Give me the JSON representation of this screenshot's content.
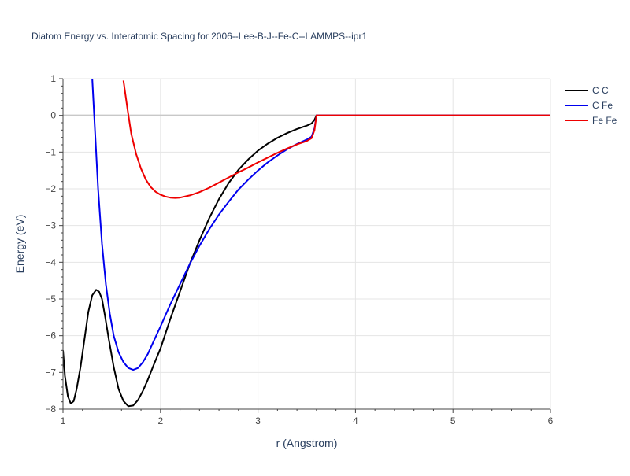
{
  "chart_data": {
    "type": "line",
    "title": "Diatom Energy vs. Interatomic Spacing for 2006--Lee-B-J--Fe-C--LAMMPS--ipr1",
    "xlabel": "r (Angstrom)",
    "ylabel": "Energy (eV)",
    "xlim": [
      1,
      6
    ],
    "ylim": [
      -8,
      1
    ],
    "x_ticks": [
      1,
      2,
      3,
      4,
      5,
      6
    ],
    "y_ticks": [
      1,
      0,
      -1,
      -2,
      -3,
      -4,
      -5,
      -6,
      -7,
      -8
    ],
    "x_tick_labels": [
      "1",
      "2",
      "3",
      "4",
      "5",
      "6"
    ],
    "y_tick_labels": [
      "1",
      "0",
      "−1",
      "−2",
      "−3",
      "−4",
      "−5",
      "−6",
      "−7",
      "−8"
    ],
    "grid": true,
    "legend_position": "top-right",
    "series": [
      {
        "name": "C C",
        "color": "#000000",
        "x": [
          1.0,
          1.02,
          1.05,
          1.08,
          1.11,
          1.14,
          1.18,
          1.22,
          1.26,
          1.3,
          1.34,
          1.37,
          1.4,
          1.43,
          1.47,
          1.52,
          1.57,
          1.62,
          1.67,
          1.72,
          1.77,
          1.82,
          1.87,
          1.93,
          2.0,
          2.1,
          2.2,
          2.3,
          2.4,
          2.5,
          2.6,
          2.7,
          2.8,
          2.9,
          3.0,
          3.1,
          3.2,
          3.3,
          3.4,
          3.5,
          3.55,
          3.58,
          3.6,
          3.62,
          4.0,
          4.5,
          5.0,
          5.5,
          6.0
        ],
        "y": [
          -6.4,
          -7.1,
          -7.65,
          -7.85,
          -7.78,
          -7.45,
          -6.85,
          -6.1,
          -5.35,
          -4.9,
          -4.75,
          -4.8,
          -5.0,
          -5.45,
          -6.1,
          -6.85,
          -7.45,
          -7.78,
          -7.92,
          -7.9,
          -7.75,
          -7.5,
          -7.2,
          -6.8,
          -6.35,
          -5.55,
          -4.8,
          -4.05,
          -3.4,
          -2.8,
          -2.28,
          -1.84,
          -1.48,
          -1.2,
          -0.96,
          -0.77,
          -0.61,
          -0.48,
          -0.37,
          -0.28,
          -0.22,
          -0.12,
          0.0,
          0.0,
          0.0,
          0.0,
          0.0,
          0.0,
          0.0
        ]
      },
      {
        "name": "C Fe",
        "color": "#0000ee",
        "x": [
          1.3,
          1.33,
          1.36,
          1.4,
          1.44,
          1.48,
          1.52,
          1.57,
          1.62,
          1.67,
          1.72,
          1.77,
          1.82,
          1.87,
          1.93,
          2.0,
          2.1,
          2.2,
          2.3,
          2.4,
          2.5,
          2.6,
          2.7,
          2.8,
          2.9,
          3.0,
          3.1,
          3.2,
          3.3,
          3.4,
          3.5,
          3.55,
          3.58,
          3.6,
          3.62,
          4.0,
          4.5,
          5.0,
          5.5,
          6.0
        ],
        "y": [
          1.0,
          -0.5,
          -2.0,
          -3.5,
          -4.6,
          -5.4,
          -6.0,
          -6.45,
          -6.72,
          -6.88,
          -6.93,
          -6.88,
          -6.72,
          -6.5,
          -6.15,
          -5.75,
          -5.15,
          -4.6,
          -4.05,
          -3.55,
          -3.1,
          -2.7,
          -2.35,
          -2.02,
          -1.75,
          -1.5,
          -1.28,
          -1.09,
          -0.92,
          -0.78,
          -0.66,
          -0.58,
          -0.35,
          0.0,
          0.0,
          0.0,
          0.0,
          0.0,
          0.0,
          0.0
        ]
      },
      {
        "name": "Fe Fe",
        "color": "#ee0000",
        "x": [
          1.62,
          1.66,
          1.7,
          1.75,
          1.8,
          1.85,
          1.9,
          1.95,
          2.0,
          2.05,
          2.1,
          2.15,
          2.2,
          2.3,
          2.4,
          2.5,
          2.6,
          2.7,
          2.8,
          2.9,
          3.0,
          3.1,
          3.2,
          3.3,
          3.4,
          3.5,
          3.55,
          3.58,
          3.6,
          3.62,
          4.0,
          4.5,
          5.0,
          5.5,
          6.0
        ],
        "y": [
          0.95,
          0.2,
          -0.5,
          -1.05,
          -1.45,
          -1.75,
          -1.95,
          -2.08,
          -2.16,
          -2.21,
          -2.24,
          -2.25,
          -2.24,
          -2.18,
          -2.09,
          -1.97,
          -1.83,
          -1.69,
          -1.55,
          -1.42,
          -1.28,
          -1.15,
          -1.02,
          -0.9,
          -0.79,
          -0.7,
          -0.62,
          -0.4,
          0.0,
          0.0,
          0.0,
          0.0,
          0.0,
          0.0,
          0.0
        ]
      }
    ]
  }
}
